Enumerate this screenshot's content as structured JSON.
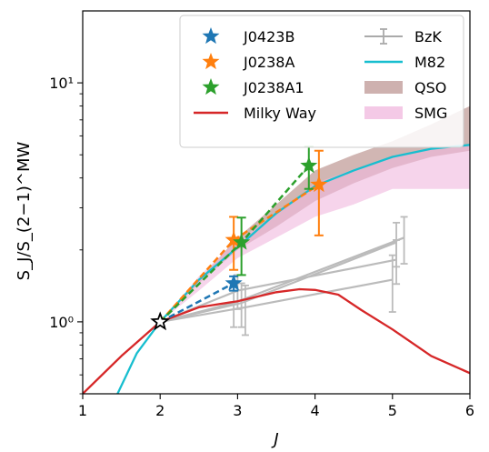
{
  "chart_data": {
    "type": "line",
    "xlabel": "J",
    "ylabel": "S_J/S_(2−1)^MW",
    "xlim": [
      1,
      6
    ],
    "ylim": [
      0.5,
      20
    ],
    "yscale": "log",
    "x_ticks": [
      1,
      2,
      3,
      4,
      5,
      6
    ],
    "y_ticks": [
      {
        "value": 1,
        "label": "10⁰"
      },
      {
        "value": 10,
        "label": "10¹"
      }
    ],
    "legend_position": "top-right",
    "series": [
      {
        "name": "J0423B",
        "kind": "marker-dashed",
        "color": "#1f77b4",
        "points": [
          [
            2,
            1.0
          ],
          [
            2.95,
            1.45
          ]
        ],
        "errors": [
          0,
          0.1
        ]
      },
      {
        "name": "J0238A",
        "kind": "marker-dashed",
        "color": "#ff7f0e",
        "points": [
          [
            2,
            1.0
          ],
          [
            2.95,
            2.2
          ],
          [
            4.05,
            3.75
          ]
        ],
        "errors": [
          0,
          0.55,
          1.45
        ]
      },
      {
        "name": "J0238A1",
        "kind": "marker-dashed",
        "color": "#2ca02c",
        "points": [
          [
            2,
            1.0
          ],
          [
            3.05,
            2.15
          ],
          [
            3.92,
            4.5
          ]
        ],
        "errors": [
          0,
          0.58,
          0.9
        ]
      },
      {
        "name": "Milky Way",
        "kind": "line",
        "color": "#d62728",
        "points": [
          [
            1,
            0.5
          ],
          [
            1.5,
            0.72
          ],
          [
            2,
            1.0
          ],
          [
            2.5,
            1.15
          ],
          [
            3,
            1.22
          ],
          [
            3.5,
            1.33
          ],
          [
            3.8,
            1.37
          ],
          [
            4,
            1.36
          ],
          [
            4.3,
            1.3
          ],
          [
            4.6,
            1.12
          ],
          [
            5,
            0.93
          ],
          [
            5.5,
            0.72
          ],
          [
            6,
            0.61
          ]
        ]
      },
      {
        "name": "BzK",
        "kind": "grey-lines",
        "color": "#bbbbbb",
        "lines": [
          {
            "points": [
              [
                2,
                1.0
              ],
              [
                3.05,
                1.2
              ],
              [
                5.05,
                2.15
              ]
            ],
            "errors": [
              0,
              0.25,
              0.45
            ]
          },
          {
            "points": [
              [
                2,
                1.0
              ],
              [
                2.95,
                1.2
              ],
              [
                5.15,
                2.25
              ]
            ],
            "errors": [
              0,
              0.25,
              0.5
            ]
          },
          {
            "points": [
              [
                2,
                1.0
              ],
              [
                3.1,
                1.15
              ],
              [
                5.0,
                1.5
              ]
            ],
            "errors": [
              0,
              0.27,
              0.4
            ]
          },
          {
            "points": [
              [
                2,
                1.0
              ],
              [
                3.0,
                1.35
              ],
              [
                5.05,
                1.82
              ]
            ],
            "errors": [
              0,
              0.22,
              0.38
            ]
          }
        ]
      },
      {
        "name": "M82",
        "kind": "line",
        "color": "#17becf",
        "points": [
          [
            1.45,
            0.5
          ],
          [
            1.7,
            0.74
          ],
          [
            2,
            1.0
          ],
          [
            2.5,
            1.5
          ],
          [
            3,
            2.05
          ],
          [
            3.5,
            2.85
          ],
          [
            4,
            3.7
          ],
          [
            4.5,
            4.3
          ],
          [
            5,
            4.9
          ],
          [
            5.5,
            5.3
          ],
          [
            6,
            5.5
          ]
        ]
      },
      {
        "name": "QSO",
        "kind": "band",
        "color": "#c9a9a6",
        "upper": [
          [
            2,
            1.0
          ],
          [
            2.5,
            1.5
          ],
          [
            3,
            2.25
          ],
          [
            3.5,
            3.1
          ],
          [
            4,
            4.3
          ],
          [
            4.5,
            5.0
          ],
          [
            5,
            5.7
          ],
          [
            5.5,
            6.7
          ],
          [
            6,
            8.0
          ]
        ],
        "lower": [
          [
            2,
            1.0
          ],
          [
            2.5,
            1.45
          ],
          [
            3,
            2.0
          ],
          [
            3.5,
            2.5
          ],
          [
            4,
            3.2
          ],
          [
            4.5,
            3.8
          ],
          [
            5,
            4.4
          ],
          [
            5.5,
            4.9
          ],
          [
            6,
            5.2
          ]
        ]
      },
      {
        "name": "SMG",
        "kind": "band",
        "color": "#f0b7de",
        "upper": [
          [
            2,
            1.0
          ],
          [
            2.5,
            1.55
          ],
          [
            3,
            2.2
          ],
          [
            3.5,
            2.8
          ],
          [
            4,
            3.8
          ],
          [
            4.5,
            4.35
          ],
          [
            5,
            4.9
          ],
          [
            5.5,
            5.3
          ],
          [
            6,
            5.5
          ]
        ],
        "lower": [
          [
            2,
            1.0
          ],
          [
            2.5,
            1.35
          ],
          [
            3,
            1.85
          ],
          [
            3.5,
            2.25
          ],
          [
            4,
            2.75
          ],
          [
            4.5,
            3.1
          ],
          [
            5,
            3.6
          ],
          [
            5.5,
            3.6
          ],
          [
            6,
            3.6
          ]
        ]
      }
    ],
    "reference_point": {
      "x": 2,
      "y": 1.0,
      "marker": "star",
      "color": "#000000"
    },
    "legend": {
      "left": [
        {
          "label": "J0423B",
          "symbol": "star",
          "color": "#1f77b4"
        },
        {
          "label": "J0238A",
          "symbol": "star",
          "color": "#ff7f0e"
        },
        {
          "label": "J0238A1",
          "symbol": "star",
          "color": "#2ca02c"
        },
        {
          "label": "Milky Way",
          "symbol": "line",
          "color": "#d62728"
        }
      ],
      "right": [
        {
          "label": "BzK",
          "symbol": "errorbar",
          "color": "#aaaaaa"
        },
        {
          "label": "M82",
          "symbol": "line",
          "color": "#17becf"
        },
        {
          "label": "QSO",
          "symbol": "patch",
          "color": "#c9a9a6"
        },
        {
          "label": "SMG",
          "symbol": "patch",
          "color": "#f0b7de"
        }
      ]
    }
  }
}
